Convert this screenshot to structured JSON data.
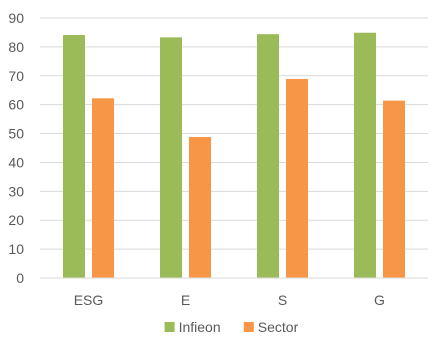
{
  "chart_data": {
    "type": "bar",
    "categories": [
      "ESG",
      "E",
      "S",
      "G"
    ],
    "series": [
      {
        "name": "Infieon",
        "values": [
          84.1,
          83.3,
          84.4,
          84.9
        ],
        "color": "#9BBB59"
      },
      {
        "name": "Sector",
        "values": [
          62.2,
          48.8,
          68.9,
          61.4
        ],
        "color": "#F79646"
      }
    ],
    "title": "",
    "xlabel": "",
    "ylabel": "",
    "ylim": [
      0,
      90
    ],
    "yticks": [
      0,
      10,
      20,
      30,
      40,
      50,
      60,
      70,
      80,
      90
    ],
    "grid": true,
    "legend": "bottom"
  }
}
